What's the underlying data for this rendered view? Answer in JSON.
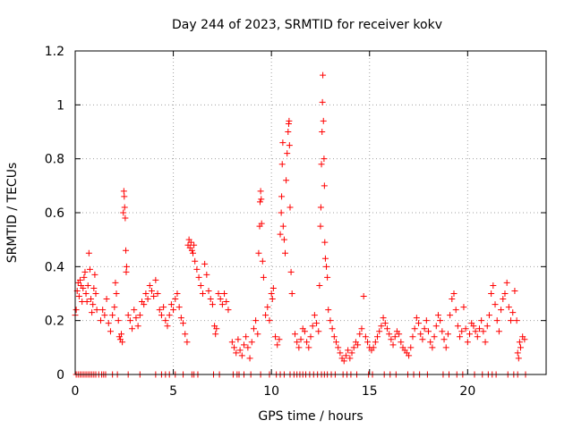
{
  "chart_data": {
    "type": "scatter",
    "title": "Day 244 of 2023, SRMTID for receiver kokv",
    "xlabel": "GPS time / hours",
    "ylabel": "SRMTID / TECUs",
    "xlim": [
      0,
      24
    ],
    "ylim": [
      0,
      1.2
    ],
    "xticks": [
      0,
      5,
      10,
      15,
      20
    ],
    "xtick_labels": [
      "0",
      "5",
      "10",
      "15",
      "20"
    ],
    "yticks": [
      0,
      0.2,
      0.4,
      0.6,
      0.8,
      1.0,
      1.2
    ],
    "ytick_labels": [
      "0",
      "0.2",
      "0.4",
      "0.6",
      "0.8",
      "1",
      "1.2"
    ],
    "grid": true,
    "marker": "+",
    "marker_color": "#ff0000",
    "series": [
      {
        "name": "kokv",
        "points": [
          [
            0.0,
            0.22
          ],
          [
            0.05,
            0.24
          ],
          [
            0.1,
            0.31
          ],
          [
            0.15,
            0.34
          ],
          [
            0.2,
            0.29
          ],
          [
            0.25,
            0.35
          ],
          [
            0.3,
            0.33
          ],
          [
            0.35,
            0.27
          ],
          [
            0.4,
            0.32
          ],
          [
            0.45,
            0.36
          ],
          [
            0.5,
            0.38
          ],
          [
            0.55,
            0.3
          ],
          [
            0.6,
            0.27
          ],
          [
            0.65,
            0.33
          ],
          [
            0.7,
            0.45
          ],
          [
            0.75,
            0.39
          ],
          [
            0.8,
            0.28
          ],
          [
            0.85,
            0.23
          ],
          [
            0.9,
            0.26
          ],
          [
            0.95,
            0.32
          ],
          [
            1.0,
            0.37
          ],
          [
            1.05,
            0.3
          ],
          [
            1.1,
            0.24
          ],
          [
            1.3,
            0.2
          ],
          [
            1.4,
            0.24
          ],
          [
            1.5,
            0.22
          ],
          [
            1.6,
            0.28
          ],
          [
            1.7,
            0.19
          ],
          [
            1.8,
            0.16
          ],
          [
            1.9,
            0.22
          ],
          [
            2.0,
            0.25
          ],
          [
            2.05,
            0.34
          ],
          [
            2.1,
            0.3
          ],
          [
            2.2,
            0.2
          ],
          [
            2.25,
            0.14
          ],
          [
            2.3,
            0.13
          ],
          [
            2.35,
            0.15
          ],
          [
            2.4,
            0.12
          ],
          [
            2.45,
            0.6
          ],
          [
            2.48,
            0.68
          ],
          [
            2.5,
            0.66
          ],
          [
            2.52,
            0.62
          ],
          [
            2.55,
            0.58
          ],
          [
            2.58,
            0.46
          ],
          [
            2.6,
            0.38
          ],
          [
            2.62,
            0.4
          ],
          [
            2.7,
            0.22
          ],
          [
            2.8,
            0.2
          ],
          [
            2.9,
            0.17
          ],
          [
            3.0,
            0.24
          ],
          [
            3.1,
            0.21
          ],
          [
            3.2,
            0.18
          ],
          [
            3.3,
            0.22
          ],
          [
            3.4,
            0.27
          ],
          [
            3.5,
            0.26
          ],
          [
            3.6,
            0.3
          ],
          [
            3.7,
            0.28
          ],
          [
            3.8,
            0.33
          ],
          [
            3.9,
            0.31
          ],
          [
            4.0,
            0.29
          ],
          [
            4.1,
            0.35
          ],
          [
            4.2,
            0.3
          ],
          [
            4.3,
            0.24
          ],
          [
            4.4,
            0.22
          ],
          [
            4.5,
            0.25
          ],
          [
            4.6,
            0.2
          ],
          [
            4.7,
            0.18
          ],
          [
            4.8,
            0.22
          ],
          [
            4.9,
            0.26
          ],
          [
            5.0,
            0.24
          ],
          [
            5.1,
            0.28
          ],
          [
            5.2,
            0.3
          ],
          [
            5.3,
            0.25
          ],
          [
            5.4,
            0.21
          ],
          [
            5.5,
            0.19
          ],
          [
            5.6,
            0.15
          ],
          [
            5.7,
            0.12
          ],
          [
            5.75,
            0.48
          ],
          [
            5.8,
            0.5
          ],
          [
            5.85,
            0.47
          ],
          [
            5.9,
            0.49
          ],
          [
            5.95,
            0.46
          ],
          [
            6.0,
            0.45
          ],
          [
            6.05,
            0.48
          ],
          [
            6.1,
            0.42
          ],
          [
            6.2,
            0.39
          ],
          [
            6.3,
            0.36
          ],
          [
            6.4,
            0.33
          ],
          [
            6.5,
            0.3
          ],
          [
            6.6,
            0.41
          ],
          [
            6.7,
            0.37
          ],
          [
            6.8,
            0.31
          ],
          [
            6.9,
            0.28
          ],
          [
            7.0,
            0.26
          ],
          [
            7.1,
            0.18
          ],
          [
            7.15,
            0.15
          ],
          [
            7.2,
            0.17
          ],
          [
            7.3,
            0.3
          ],
          [
            7.4,
            0.28
          ],
          [
            7.5,
            0.26
          ],
          [
            7.6,
            0.3
          ],
          [
            7.7,
            0.27
          ],
          [
            7.8,
            0.24
          ],
          [
            8.0,
            0.12
          ],
          [
            8.1,
            0.1
          ],
          [
            8.2,
            0.08
          ],
          [
            8.3,
            0.13
          ],
          [
            8.4,
            0.09
          ],
          [
            8.5,
            0.07
          ],
          [
            8.6,
            0.11
          ],
          [
            8.7,
            0.14
          ],
          [
            8.8,
            0.1
          ],
          [
            8.9,
            0.06
          ],
          [
            9.0,
            0.12
          ],
          [
            9.1,
            0.17
          ],
          [
            9.2,
            0.2
          ],
          [
            9.3,
            0.15
          ],
          [
            9.35,
            0.45
          ],
          [
            9.4,
            0.55
          ],
          [
            9.42,
            0.64
          ],
          [
            9.45,
            0.68
          ],
          [
            9.48,
            0.65
          ],
          [
            9.5,
            0.56
          ],
          [
            9.55,
            0.42
          ],
          [
            9.6,
            0.36
          ],
          [
            9.7,
            0.22
          ],
          [
            9.8,
            0.25
          ],
          [
            9.9,
            0.2
          ],
          [
            10.0,
            0.3
          ],
          [
            10.05,
            0.28
          ],
          [
            10.1,
            0.32
          ],
          [
            10.2,
            0.14
          ],
          [
            10.3,
            0.11
          ],
          [
            10.4,
            0.13
          ],
          [
            10.45,
            0.52
          ],
          [
            10.5,
            0.6
          ],
          [
            10.52,
            0.66
          ],
          [
            10.55,
            0.78
          ],
          [
            10.58,
            0.86
          ],
          [
            10.6,
            0.55
          ],
          [
            10.65,
            0.5
          ],
          [
            10.7,
            0.45
          ],
          [
            10.75,
            0.72
          ],
          [
            10.8,
            0.82
          ],
          [
            10.85,
            0.9
          ],
          [
            10.88,
            0.93
          ],
          [
            10.9,
            0.94
          ],
          [
            10.92,
            0.85
          ],
          [
            10.95,
            0.62
          ],
          [
            11.0,
            0.38
          ],
          [
            11.05,
            0.3
          ],
          [
            11.2,
            0.15
          ],
          [
            11.3,
            0.12
          ],
          [
            11.4,
            0.1
          ],
          [
            11.5,
            0.13
          ],
          [
            11.6,
            0.17
          ],
          [
            11.7,
            0.16
          ],
          [
            11.8,
            0.12
          ],
          [
            11.9,
            0.1
          ],
          [
            12.0,
            0.14
          ],
          [
            12.1,
            0.18
          ],
          [
            12.2,
            0.22
          ],
          [
            12.3,
            0.19
          ],
          [
            12.4,
            0.16
          ],
          [
            12.45,
            0.33
          ],
          [
            12.5,
            0.55
          ],
          [
            12.52,
            0.62
          ],
          [
            12.55,
            0.78
          ],
          [
            12.58,
            0.9
          ],
          [
            12.6,
            1.01
          ],
          [
            12.62,
            1.11
          ],
          [
            12.65,
            0.94
          ],
          [
            12.68,
            0.8
          ],
          [
            12.7,
            0.7
          ],
          [
            12.72,
            0.49
          ],
          [
            12.75,
            0.43
          ],
          [
            12.8,
            0.4
          ],
          [
            12.85,
            0.36
          ],
          [
            12.9,
            0.24
          ],
          [
            13.0,
            0.2
          ],
          [
            13.1,
            0.17
          ],
          [
            13.2,
            0.14
          ],
          [
            13.3,
            0.12
          ],
          [
            13.4,
            0.1
          ],
          [
            13.5,
            0.08
          ],
          [
            13.6,
            0.06
          ],
          [
            13.7,
            0.05
          ],
          [
            13.8,
            0.07
          ],
          [
            13.9,
            0.09
          ],
          [
            14.0,
            0.06
          ],
          [
            14.1,
            0.08
          ],
          [
            14.2,
            0.1
          ],
          [
            14.3,
            0.12
          ],
          [
            14.4,
            0.11
          ],
          [
            14.5,
            0.15
          ],
          [
            14.6,
            0.17
          ],
          [
            14.7,
            0.29
          ],
          [
            14.8,
            0.14
          ],
          [
            14.9,
            0.12
          ],
          [
            15.0,
            0.1
          ],
          [
            15.1,
            0.09
          ],
          [
            15.2,
            0.1
          ],
          [
            15.3,
            0.12
          ],
          [
            15.4,
            0.14
          ],
          [
            15.5,
            0.16
          ],
          [
            15.6,
            0.18
          ],
          [
            15.7,
            0.21
          ],
          [
            15.8,
            0.19
          ],
          [
            15.9,
            0.17
          ],
          [
            16.0,
            0.15
          ],
          [
            16.1,
            0.13
          ],
          [
            16.2,
            0.11
          ],
          [
            16.3,
            0.14
          ],
          [
            16.4,
            0.16
          ],
          [
            16.5,
            0.15
          ],
          [
            16.6,
            0.12
          ],
          [
            16.7,
            0.1
          ],
          [
            16.8,
            0.09
          ],
          [
            16.9,
            0.08
          ],
          [
            17.0,
            0.07
          ],
          [
            17.1,
            0.1
          ],
          [
            17.2,
            0.14
          ],
          [
            17.3,
            0.17
          ],
          [
            17.4,
            0.21
          ],
          [
            17.5,
            0.19
          ],
          [
            17.6,
            0.15
          ],
          [
            17.7,
            0.13
          ],
          [
            17.8,
            0.17
          ],
          [
            17.9,
            0.2
          ],
          [
            18.0,
            0.16
          ],
          [
            18.1,
            0.12
          ],
          [
            18.2,
            0.1
          ],
          [
            18.3,
            0.14
          ],
          [
            18.4,
            0.18
          ],
          [
            18.5,
            0.22
          ],
          [
            18.6,
            0.2
          ],
          [
            18.7,
            0.16
          ],
          [
            18.8,
            0.13
          ],
          [
            18.9,
            0.1
          ],
          [
            19.0,
            0.15
          ],
          [
            19.1,
            0.22
          ],
          [
            19.2,
            0.28
          ],
          [
            19.3,
            0.3
          ],
          [
            19.4,
            0.24
          ],
          [
            19.5,
            0.18
          ],
          [
            19.6,
            0.14
          ],
          [
            19.7,
            0.16
          ],
          [
            19.8,
            0.25
          ],
          [
            19.9,
            0.17
          ],
          [
            20.0,
            0.12
          ],
          [
            20.1,
            0.15
          ],
          [
            20.2,
            0.19
          ],
          [
            20.3,
            0.18
          ],
          [
            20.4,
            0.16
          ],
          [
            20.5,
            0.14
          ],
          [
            20.6,
            0.17
          ],
          [
            20.7,
            0.2
          ],
          [
            20.8,
            0.16
          ],
          [
            20.9,
            0.12
          ],
          [
            21.0,
            0.18
          ],
          [
            21.1,
            0.22
          ],
          [
            21.2,
            0.3
          ],
          [
            21.3,
            0.33
          ],
          [
            21.4,
            0.26
          ],
          [
            21.5,
            0.2
          ],
          [
            21.6,
            0.16
          ],
          [
            21.7,
            0.24
          ],
          [
            21.8,
            0.28
          ],
          [
            21.9,
            0.3
          ],
          [
            22.0,
            0.34
          ],
          [
            22.1,
            0.25
          ],
          [
            22.2,
            0.2
          ],
          [
            22.3,
            0.23
          ],
          [
            22.4,
            0.31
          ],
          [
            22.5,
            0.2
          ],
          [
            22.55,
            0.08
          ],
          [
            22.6,
            0.06
          ],
          [
            22.65,
            0.12
          ],
          [
            22.7,
            0.1
          ],
          [
            22.8,
            0.14
          ],
          [
            22.9,
            0.13
          ]
        ]
      }
    ],
    "zero_points_x": [
      0.05,
      0.15,
      0.25,
      0.35,
      0.45,
      0.55,
      0.65,
      0.75,
      0.85,
      0.95,
      1.05,
      1.2,
      1.35,
      1.45,
      1.55,
      1.9,
      2.15,
      2.7,
      3.3,
      4.1,
      4.4,
      4.6,
      4.8,
      5.1,
      5.5,
      5.95,
      6.05,
      6.25,
      7.05,
      7.35,
      8.05,
      8.25,
      8.35,
      8.6,
      8.95,
      9.45,
      9.9,
      10.25,
      10.45,
      10.65,
      10.95,
      11.15,
      11.3,
      11.45,
      11.6,
      11.75,
      11.95,
      12.15,
      12.35,
      12.55,
      12.7,
      12.85,
      13.05,
      13.25,
      13.65,
      13.85,
      14.05,
      14.35,
      14.95,
      15.15,
      15.75,
      16.05,
      16.35,
      16.95,
      17.25,
      17.55,
      17.95,
      18.75,
      19.05,
      19.45,
      19.75,
      20.35,
      20.75,
      21.05,
      21.25,
      21.45,
      22.05,
      22.35,
      22.55,
      22.95
    ]
  }
}
